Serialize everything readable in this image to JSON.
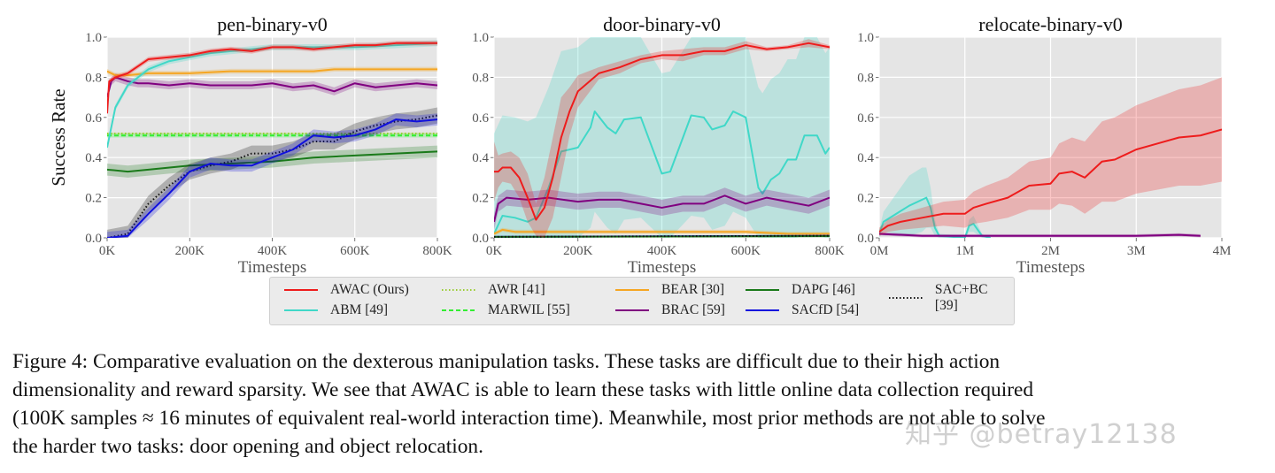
{
  "figure": {
    "caption_lines": [
      "Figure 4: Comparative evaluation on the dexterous manipulation tasks. These tasks are difficult due to their high action",
      "dimensionality and reward sparsity. We see that AWAC is able to learn these tasks with little online data collection required",
      "(100K samples ≈ 16 minutes of equivalent real-world interaction time). Meanwhile, most prior methods are not able to solve",
      "the harder two tasks: door opening and object relocation."
    ],
    "watermark": "知乎 @betray12138"
  },
  "legend": [
    {
      "name": "AWAC (Ours)",
      "color": "#ee1c1c",
      "style": "solid"
    },
    {
      "name": "AWR [41]",
      "color": "#9acd32",
      "style": "dotted"
    },
    {
      "name": "BEAR [30]",
      "color": "#f5a623",
      "style": "solid"
    },
    {
      "name": "DAPG [46]",
      "color": "#1a7a1a",
      "style": "solid"
    },
    {
      "name": "SAC+BC [39]",
      "color": "#111111",
      "style": "dotted"
    },
    {
      "name": "ABM [49]",
      "color": "#40d8c8",
      "style": "solid"
    },
    {
      "name": "MARWIL [55]",
      "color": "#33ee33",
      "style": "dashed"
    },
    {
      "name": "BRAC [59]",
      "color": "#800080",
      "style": "solid"
    },
    {
      "name": "SACfD [54]",
      "color": "#1010dd",
      "style": "solid"
    }
  ],
  "chart_data": [
    {
      "type": "line",
      "title": "pen-binary-v0",
      "xlabel": "Timesteps",
      "ylabel": "Success Rate",
      "xlim": [
        0,
        800000
      ],
      "ylim": [
        0,
        1
      ],
      "xticks": [
        0,
        200000,
        400000,
        600000,
        800000
      ],
      "xtick_labels": [
        "0K",
        "200K",
        "400K",
        "600K",
        "800K"
      ],
      "yticks": [
        0,
        0.2,
        0.4,
        0.6,
        0.8,
        1.0
      ],
      "ytick_labels": [
        "0.0",
        "0.2",
        "0.4",
        "0.6",
        "0.8",
        "1.0"
      ],
      "grid": true,
      "series": [
        {
          "name": "AWR [41]",
          "x": [
            0,
            800000
          ],
          "y": [
            0.52,
            0.52
          ],
          "std": 0.005
        },
        {
          "name": "MARWIL [55]",
          "x": [
            0,
            800000
          ],
          "y": [
            0.51,
            0.51
          ],
          "std": 0.01
        },
        {
          "name": "DAPG [46]",
          "x": [
            0,
            50000,
            100000,
            200000,
            300000,
            400000,
            500000,
            600000,
            700000,
            800000
          ],
          "y": [
            0.34,
            0.33,
            0.34,
            0.36,
            0.37,
            0.38,
            0.4,
            0.41,
            0.42,
            0.43
          ],
          "std": 0.03
        },
        {
          "name": "SAC+BC [39]",
          "x": [
            0,
            50000,
            100000,
            150000,
            200000,
            250000,
            300000,
            350000,
            400000,
            450000,
            500000,
            550000,
            600000,
            650000,
            700000,
            750000,
            800000
          ],
          "y": [
            0,
            0.02,
            0.17,
            0.26,
            0.33,
            0.36,
            0.38,
            0.42,
            0.42,
            0.44,
            0.48,
            0.48,
            0.53,
            0.56,
            0.58,
            0.59,
            0.61
          ],
          "std": 0.04
        },
        {
          "name": "SACfD [54]",
          "x": [
            0,
            50000,
            100000,
            150000,
            200000,
            250000,
            300000,
            350000,
            400000,
            450000,
            500000,
            550000,
            600000,
            650000,
            700000,
            750000,
            800000
          ],
          "y": [
            0,
            0.01,
            0.12,
            0.22,
            0.33,
            0.37,
            0.36,
            0.36,
            0.4,
            0.44,
            0.51,
            0.5,
            0.51,
            0.54,
            0.59,
            0.58,
            0.59
          ],
          "std": 0.03
        },
        {
          "name": "BRAC [59]",
          "x": [
            0,
            10000,
            20000,
            50000,
            75000,
            100000,
            150000,
            200000,
            250000,
            300000,
            350000,
            400000,
            450000,
            500000,
            550000,
            600000,
            650000,
            700000,
            750000,
            800000
          ],
          "y": [
            0.7,
            0.78,
            0.8,
            0.78,
            0.77,
            0.77,
            0.76,
            0.77,
            0.76,
            0.76,
            0.76,
            0.77,
            0.75,
            0.76,
            0.73,
            0.77,
            0.75,
            0.76,
            0.77,
            0.76
          ],
          "std": 0.02
        },
        {
          "name": "BEAR [30]",
          "x": [
            0,
            20000,
            50000,
            100000,
            200000,
            300000,
            400000,
            500000,
            550000,
            600000,
            700000,
            800000
          ],
          "y": [
            0.83,
            0.81,
            0.81,
            0.82,
            0.82,
            0.83,
            0.83,
            0.83,
            0.84,
            0.84,
            0.84,
            0.84
          ],
          "std": 0.012
        },
        {
          "name": "ABM [49]",
          "x": [
            0,
            20000,
            50000,
            100000,
            150000,
            200000,
            250000,
            300000,
            400000,
            500000,
            600000,
            700000,
            800000
          ],
          "y": [
            0.45,
            0.65,
            0.76,
            0.84,
            0.88,
            0.9,
            0.92,
            0.93,
            0.95,
            0.95,
            0.95,
            0.96,
            0.97
          ],
          "std": 0.015
        },
        {
          "name": "AWAC (Ours)",
          "x": [
            0,
            5000,
            20000,
            50000,
            100000,
            150000,
            200000,
            250000,
            300000,
            350000,
            400000,
            450000,
            500000,
            550000,
            600000,
            650000,
            700000,
            750000,
            800000
          ],
          "y": [
            0.62,
            0.78,
            0.8,
            0.82,
            0.89,
            0.9,
            0.91,
            0.93,
            0.94,
            0.93,
            0.95,
            0.95,
            0.94,
            0.95,
            0.96,
            0.96,
            0.97,
            0.97,
            0.97
          ],
          "std": 0.012
        }
      ]
    },
    {
      "type": "line",
      "title": "door-binary-v0",
      "xlabel": "Timesteps",
      "ylabel": "",
      "xlim": [
        0,
        800000
      ],
      "ylim": [
        0,
        1
      ],
      "xticks": [
        0,
        200000,
        400000,
        600000,
        800000
      ],
      "xtick_labels": [
        "0K",
        "200K",
        "400K",
        "600K",
        "800K"
      ],
      "yticks": [
        0,
        0.2,
        0.4,
        0.6,
        0.8,
        1.0
      ],
      "ytick_labels": [
        "0.0",
        "0.2",
        "0.4",
        "0.6",
        "0.8",
        "1.0"
      ],
      "grid": true,
      "series": [
        {
          "name": "ABM [49]",
          "x": [
            0,
            20000,
            50000,
            80000,
            100000,
            130000,
            160000,
            200000,
            230000,
            240000,
            270000,
            290000,
            310000,
            350000,
            400000,
            420000,
            470000,
            500000,
            520000,
            550000,
            570000,
            600000,
            630000,
            640000,
            660000,
            680000,
            700000,
            720000,
            740000,
            770000,
            790000,
            800000
          ],
          "y": [
            0.02,
            0.11,
            0.1,
            0.08,
            0.1,
            0.25,
            0.43,
            0.45,
            0.55,
            0.63,
            0.55,
            0.52,
            0.59,
            0.6,
            0.32,
            0.33,
            0.61,
            0.6,
            0.54,
            0.56,
            0.63,
            0.6,
            0.25,
            0.22,
            0.29,
            0.32,
            0.39,
            0.39,
            0.51,
            0.51,
            0.42,
            0.45
          ],
          "std": 0.5
        },
        {
          "name": "BRAC [59]",
          "x": [
            0,
            10000,
            30000,
            80000,
            130000,
            200000,
            250000,
            300000,
            350000,
            400000,
            450000,
            500000,
            550000,
            600000,
            650000,
            700000,
            750000,
            800000
          ],
          "y": [
            0.08,
            0.17,
            0.2,
            0.19,
            0.2,
            0.18,
            0.19,
            0.19,
            0.17,
            0.15,
            0.17,
            0.17,
            0.21,
            0.17,
            0.2,
            0.18,
            0.16,
            0.2
          ],
          "std": 0.04
        },
        {
          "name": "BEAR [30]",
          "x": [
            0,
            20000,
            50000,
            100000,
            200000,
            300000,
            400000,
            500000,
            600000,
            700000,
            800000
          ],
          "y": [
            0.02,
            0.04,
            0.03,
            0.03,
            0.03,
            0.03,
            0.03,
            0.03,
            0.03,
            0.02,
            0.02
          ],
          "std": 0.01
        },
        {
          "name": "SACfD [54]",
          "x": [
            0,
            800000
          ],
          "y": [
            0.005,
            0.01
          ],
          "std": 0.005
        },
        {
          "name": "DAPG [46]",
          "x": [
            0,
            800000
          ],
          "y": [
            0.005,
            0.008
          ],
          "std": 0.003
        },
        {
          "name": "SAC+BC [39]",
          "x": [
            0,
            800000
          ],
          "y": [
            0.005,
            0.01
          ],
          "std": 0.003
        },
        {
          "name": "AWAC (Ours)",
          "x": [
            0,
            10000,
            20000,
            40000,
            60000,
            80000,
            100000,
            120000,
            140000,
            160000,
            180000,
            200000,
            250000,
            300000,
            350000,
            400000,
            450000,
            500000,
            550000,
            600000,
            650000,
            700000,
            750000,
            800000
          ],
          "y": [
            0.33,
            0.33,
            0.35,
            0.35,
            0.3,
            0.2,
            0.09,
            0.15,
            0.3,
            0.5,
            0.63,
            0.73,
            0.82,
            0.85,
            0.89,
            0.91,
            0.91,
            0.93,
            0.93,
            0.96,
            0.94,
            0.95,
            0.97,
            0.95
          ],
          "std": [
            0.15,
            0.08,
            0.07,
            0.08,
            0.1,
            0.12,
            0.08,
            0.15,
            0.2,
            0.2,
            0.12,
            0.08,
            0.03,
            0.03,
            0.02,
            0.02,
            0.03,
            0.02,
            0.02,
            0.02,
            0.01,
            0.01,
            0.02,
            0.01
          ]
        }
      ]
    },
    {
      "type": "line",
      "title": "relocate-binary-v0",
      "xlabel": "Timesteps",
      "ylabel": "",
      "xlim": [
        0,
        4000000
      ],
      "ylim": [
        0,
        1
      ],
      "xticks": [
        0,
        1000000,
        2000000,
        3000000,
        4000000
      ],
      "xtick_labels": [
        "0M",
        "1M",
        "2M",
        "3M",
        "4M"
      ],
      "yticks": [
        0,
        0.2,
        0.4,
        0.6,
        0.8,
        1.0
      ],
      "ytick_labels": [
        "0.0",
        "0.2",
        "0.4",
        "0.6",
        "0.8",
        "1.0"
      ],
      "grid": true,
      "series": [
        {
          "name": "ABM [49]",
          "x": [
            0,
            50000,
            200000,
            350000,
            500000,
            550000,
            600000,
            650000,
            700000,
            1000000,
            1050000,
            1100000,
            1200000,
            1300000
          ],
          "y": [
            0.02,
            0.08,
            0.12,
            0.16,
            0.19,
            0.2,
            0.15,
            0.05,
            0.01,
            0.0,
            0.06,
            0.07,
            0.01,
            0.0
          ],
          "std": [
            0.02,
            0.05,
            0.1,
            0.15,
            0.16,
            0.15,
            0.1,
            0.04,
            0.01,
            0.01,
            0.03,
            0.04,
            0.01,
            0.0
          ]
        },
        {
          "name": "BRAC [59]",
          "x": [
            0,
            500000,
            1000000,
            1500000,
            2000000,
            2500000,
            3000000,
            3500000,
            3750000
          ],
          "y": [
            0.02,
            0.01,
            0.01,
            0.01,
            0.01,
            0.01,
            0.01,
            0.015,
            0.01
          ],
          "std": 0.008
        },
        {
          "name": "AWAC (Ours)",
          "x": [
            0,
            100000,
            250000,
            500000,
            750000,
            1000000,
            1100000,
            1250000,
            1500000,
            1750000,
            2000000,
            2100000,
            2250000,
            2400000,
            2600000,
            2750000,
            3000000,
            3250000,
            3500000,
            3750000,
            4000000
          ],
          "y": [
            0.03,
            0.06,
            0.08,
            0.1,
            0.12,
            0.12,
            0.15,
            0.17,
            0.2,
            0.26,
            0.27,
            0.32,
            0.33,
            0.3,
            0.38,
            0.39,
            0.44,
            0.47,
            0.5,
            0.51,
            0.54
          ],
          "std": [
            0.02,
            0.03,
            0.04,
            0.05,
            0.06,
            0.07,
            0.08,
            0.09,
            0.1,
            0.12,
            0.13,
            0.15,
            0.17,
            0.18,
            0.2,
            0.21,
            0.22,
            0.23,
            0.24,
            0.25,
            0.26
          ]
        }
      ]
    }
  ]
}
